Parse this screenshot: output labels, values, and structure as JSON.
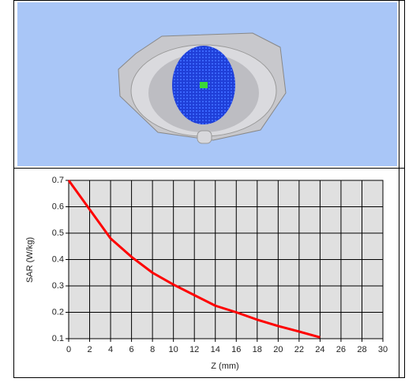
{
  "chart_data": {
    "type": "line",
    "xlabel": "Z (mm)",
    "ylabel": "SAR (W/kg)",
    "x": [
      0,
      2,
      4,
      6,
      8,
      10,
      12,
      14,
      16,
      18,
      20,
      22,
      24
    ],
    "series": [
      {
        "color": "#ff0000",
        "values": [
          0.7,
          0.59,
          0.48,
          0.41,
          0.35,
          0.305,
          0.265,
          0.225,
          0.2,
          0.172,
          0.148,
          0.127,
          0.105
        ]
      }
    ],
    "xlim": [
      0,
      30
    ],
    "xticks": [
      0,
      2,
      4,
      6,
      8,
      10,
      12,
      14,
      16,
      18,
      20,
      22,
      24,
      26,
      28,
      30
    ],
    "ylim": [
      0.1,
      0.7
    ],
    "yticks": [
      0.1,
      0.2,
      0.3,
      0.4,
      0.5,
      0.6,
      0.7
    ],
    "grid": true
  }
}
